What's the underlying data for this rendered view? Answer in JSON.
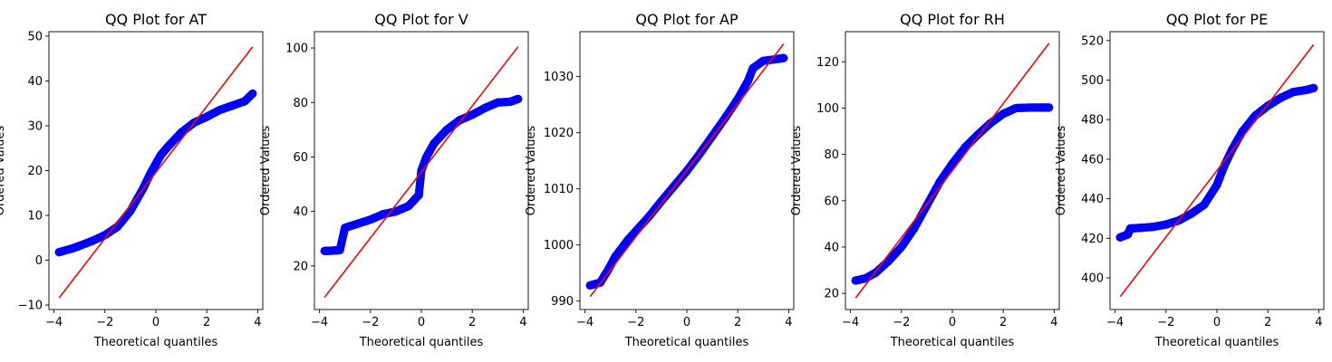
{
  "figure": {
    "colors": {
      "points": "#0000ff",
      "fit_line": "#ff0000",
      "axes": "#000000",
      "background": "#ffffff"
    }
  },
  "chart_data": [
    {
      "type": "scatter",
      "title": "QQ Plot for AT",
      "xlabel": "Theoretical quantiles",
      "ylabel": "Ordered Values",
      "xlim": [
        -4.2,
        4.2
      ],
      "ylim": [
        -11.0,
        51.0
      ],
      "xticks": [
        -4,
        -2,
        0,
        2,
        4
      ],
      "yticks": [
        -10,
        0,
        10,
        20,
        30,
        40,
        50
      ],
      "grid": false,
      "fit_line": {
        "x": [
          -3.8,
          3.8
        ],
        "y": [
          -8.4,
          47.6
        ]
      },
      "points": [
        [
          -3.8,
          1.8
        ],
        [
          -3.3,
          2.6
        ],
        [
          -3.0,
          3.2
        ],
        [
          -2.5,
          4.3
        ],
        [
          -2.0,
          5.6
        ],
        [
          -1.5,
          7.5
        ],
        [
          -1.0,
          11.0
        ],
        [
          -0.5,
          16.0
        ],
        [
          -0.2,
          19.5
        ],
        [
          0.0,
          21.5
        ],
        [
          0.2,
          23.5
        ],
        [
          0.5,
          25.5
        ],
        [
          1.0,
          28.5
        ],
        [
          1.5,
          30.7
        ],
        [
          2.0,
          32.0
        ],
        [
          2.5,
          33.5
        ],
        [
          3.0,
          34.5
        ],
        [
          3.5,
          35.5
        ],
        [
          3.8,
          37.2
        ]
      ]
    },
    {
      "type": "scatter",
      "title": "QQ Plot for V",
      "xlabel": "Theoretical quantiles",
      "ylabel": "Ordered Values",
      "xlim": [
        -4.2,
        4.2
      ],
      "ylim": [
        4.0,
        106.0
      ],
      "xticks": [
        -4,
        -2,
        0,
        2,
        4
      ],
      "yticks": [
        20,
        40,
        60,
        80,
        100
      ],
      "grid": false,
      "fit_line": {
        "x": [
          -3.8,
          3.8
        ],
        "y": [
          8.5,
          100.5
        ]
      },
      "points": [
        [
          -3.8,
          25.5
        ],
        [
          -3.5,
          25.6
        ],
        [
          -3.2,
          25.8
        ],
        [
          -3.0,
          34.0
        ],
        [
          -2.5,
          35.5
        ],
        [
          -2.0,
          37.0
        ],
        [
          -1.5,
          39.0
        ],
        [
          -1.0,
          40.0
        ],
        [
          -0.5,
          42.0
        ],
        [
          -0.1,
          46.0
        ],
        [
          0.0,
          55.0
        ],
        [
          0.2,
          60.0
        ],
        [
          0.5,
          65.0
        ],
        [
          1.0,
          70.0
        ],
        [
          1.5,
          73.5
        ],
        [
          2.0,
          75.5
        ],
        [
          2.5,
          78.0
        ],
        [
          3.0,
          80.0
        ],
        [
          3.5,
          80.3
        ],
        [
          3.8,
          81.3
        ]
      ]
    },
    {
      "type": "scatter",
      "title": "QQ Plot for AP",
      "xlabel": "Theoretical quantiles",
      "ylabel": "Ordered Values",
      "xlim": [
        -4.2,
        4.2
      ],
      "ylim": [
        988.5,
        1038.0
      ],
      "xticks": [
        -4,
        -2,
        0,
        2,
        4
      ],
      "yticks": [
        990,
        1000,
        1010,
        1020,
        1030
      ],
      "grid": false,
      "fit_line": {
        "x": [
          -3.8,
          3.8
        ],
        "y": [
          990.8,
          1035.8
        ]
      },
      "points": [
        [
          -3.8,
          992.8
        ],
        [
          -3.4,
          993.3
        ],
        [
          -3.1,
          995.5
        ],
        [
          -2.8,
          998.0
        ],
        [
          -2.3,
          1001.0
        ],
        [
          -1.5,
          1005.0
        ],
        [
          -1.0,
          1007.8
        ],
        [
          -0.5,
          1010.5
        ],
        [
          0.0,
          1013.2
        ],
        [
          0.5,
          1016.2
        ],
        [
          1.0,
          1019.4
        ],
        [
          1.5,
          1022.6
        ],
        [
          2.0,
          1026.0
        ],
        [
          2.4,
          1029.2
        ],
        [
          2.6,
          1031.5
        ],
        [
          3.0,
          1032.8
        ],
        [
          3.5,
          1033.1
        ],
        [
          3.8,
          1033.3
        ]
      ]
    },
    {
      "type": "scatter",
      "title": "QQ Plot for RH",
      "xlabel": "Theoretical quantiles",
      "ylabel": "Ordered Values",
      "xlim": [
        -4.2,
        4.2
      ],
      "ylim": [
        13.0,
        133.0
      ],
      "xticks": [
        -4,
        -2,
        0,
        2,
        4
      ],
      "yticks": [
        20,
        40,
        60,
        80,
        100,
        120
      ],
      "grid": false,
      "fit_line": {
        "x": [
          -3.8,
          3.8
        ],
        "y": [
          18.0,
          128.0
        ]
      },
      "points": [
        [
          -3.8,
          25.5
        ],
        [
          -3.4,
          26.5
        ],
        [
          -3.0,
          29.0
        ],
        [
          -2.5,
          34.0
        ],
        [
          -2.0,
          40.0
        ],
        [
          -1.5,
          48.0
        ],
        [
          -1.0,
          58.0
        ],
        [
          -0.5,
          68.0
        ],
        [
          0.0,
          76.0
        ],
        [
          0.5,
          83.0
        ],
        [
          1.0,
          88.5
        ],
        [
          1.5,
          93.5
        ],
        [
          2.0,
          97.5
        ],
        [
          2.5,
          100.0
        ],
        [
          3.0,
          100.2
        ],
        [
          3.5,
          100.2
        ],
        [
          3.8,
          100.2
        ]
      ]
    },
    {
      "type": "scatter",
      "title": "QQ Plot for PE",
      "xlabel": "Theoretical quantiles",
      "ylabel": "Ordered Values",
      "xlim": [
        -4.2,
        4.2
      ],
      "ylim": [
        384.0,
        524.5
      ],
      "xticks": [
        -4,
        -2,
        0,
        2,
        4
      ],
      "yticks": [
        400,
        420,
        440,
        460,
        480,
        500,
        520
      ],
      "grid": false,
      "fit_line": {
        "x": [
          -3.8,
          3.8
        ],
        "y": [
          390.5,
          518.0
        ]
      },
      "points": [
        [
          -3.8,
          420.5
        ],
        [
          -3.5,
          422.0
        ],
        [
          -3.4,
          425.0
        ],
        [
          -3.0,
          425.3
        ],
        [
          -2.5,
          425.8
        ],
        [
          -2.0,
          427.0
        ],
        [
          -1.5,
          429.0
        ],
        [
          -1.0,
          432.5
        ],
        [
          -0.5,
          437.0
        ],
        [
          0.0,
          447.0
        ],
        [
          0.3,
          457.0
        ],
        [
          0.6,
          465.0
        ],
        [
          1.0,
          474.0
        ],
        [
          1.5,
          482.0
        ],
        [
          2.0,
          487.0
        ],
        [
          2.5,
          491.0
        ],
        [
          3.0,
          494.0
        ],
        [
          3.5,
          495.0
        ],
        [
          3.8,
          496.0
        ]
      ]
    }
  ]
}
